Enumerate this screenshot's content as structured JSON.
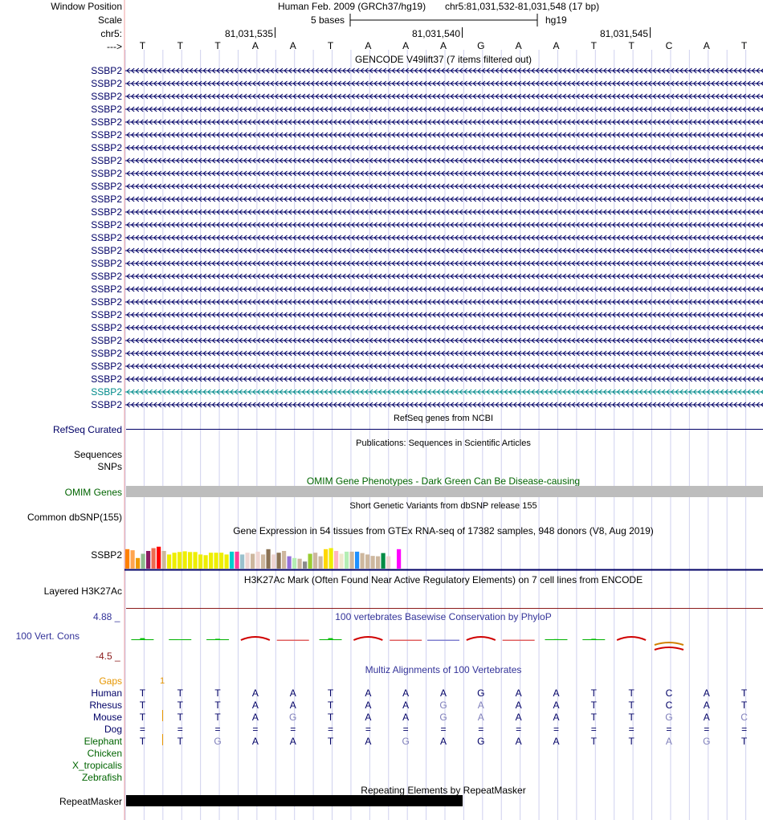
{
  "header": {
    "labels": {
      "window_position": "Window Position",
      "scale": "Scale",
      "chr": "chr5:",
      "arrow": "--->"
    },
    "assembly": "Human Feb. 2009 (GRCh37/hg19)",
    "position": "chr5:81,031,532-81,031,548 (17 bp)",
    "scale_text": "5 bases",
    "scale_db": "hg19",
    "ticks": [
      "81,031,535",
      "81,031,540",
      "81,031,545"
    ]
  },
  "sequence": [
    "T",
    "T",
    "T",
    "A",
    "A",
    "T",
    "A",
    "A",
    "A",
    "G",
    "A",
    "A",
    "T",
    "T",
    "C",
    "A",
    "T"
  ],
  "gencode": {
    "title": "GENCODE V49lift37 (7 items filtered out)",
    "label": "SSBP2",
    "row_count": 27,
    "highlight_row": 25
  },
  "refseq": {
    "title": "RefSeq genes from NCBI",
    "label": "RefSeq Curated"
  },
  "publications": {
    "title": "Publications: Sequences in Scientific Articles",
    "labels": [
      "Sequences",
      "SNPs"
    ]
  },
  "omim": {
    "title": "OMIM Gene Phenotypes - Dark Green Can Be Disease-causing",
    "label": "OMIM Genes"
  },
  "dbsnp": {
    "title": "Short Genetic Variants from dbSNP release 155",
    "label": "Common dbSNP(155)"
  },
  "gtex": {
    "title": "Gene Expression in 54 tissues from GTEx RNA-seq of 17382 samples, 948 donors (V8, Aug 2019)",
    "label": "SSBP2",
    "bars": [
      {
        "v": 0.55,
        "c": "#FF7F00"
      },
      {
        "v": 0.52,
        "c": "#FFA54F"
      },
      {
        "v": 0.3,
        "c": "#EE9A00"
      },
      {
        "v": 0.42,
        "c": "#8FBC8F"
      },
      {
        "v": 0.5,
        "c": "#8B1C62"
      },
      {
        "v": 0.58,
        "c": "#EE6A50"
      },
      {
        "v": 0.62,
        "c": "#FF0000"
      },
      {
        "v": 0.5,
        "c": "#CDB79E"
      },
      {
        "v": 0.4,
        "c": "#EEEE00"
      },
      {
        "v": 0.45,
        "c": "#EEEE00"
      },
      {
        "v": 0.47,
        "c": "#EEEE00"
      },
      {
        "v": 0.49,
        "c": "#EEEE00"
      },
      {
        "v": 0.47,
        "c": "#EEEE00"
      },
      {
        "v": 0.47,
        "c": "#EEEE00"
      },
      {
        "v": 0.4,
        "c": "#EEEE00"
      },
      {
        "v": 0.38,
        "c": "#EEEE00"
      },
      {
        "v": 0.45,
        "c": "#EEEE00"
      },
      {
        "v": 0.45,
        "c": "#EEEE00"
      },
      {
        "v": 0.45,
        "c": "#EEEE00"
      },
      {
        "v": 0.4,
        "c": "#EEEE00"
      },
      {
        "v": 0.48,
        "c": "#00CDCD"
      },
      {
        "v": 0.48,
        "c": "#FF3E96"
      },
      {
        "v": 0.4,
        "c": "#9AC0CD"
      },
      {
        "v": 0.45,
        "c": "#EED5D2"
      },
      {
        "v": 0.42,
        "c": "#CDB79E"
      },
      {
        "v": 0.48,
        "c": "#EED5D2"
      },
      {
        "v": 0.4,
        "c": "#CDB79E"
      },
      {
        "v": 0.55,
        "c": "#8B7355"
      },
      {
        "v": 0.4,
        "c": "#EED5D2"
      },
      {
        "v": 0.45,
        "c": "#8B7355"
      },
      {
        "v": 0.5,
        "c": "#CDB79E"
      },
      {
        "v": 0.35,
        "c": "#9370DB"
      },
      {
        "v": 0.3,
        "c": "#B4EEB4"
      },
      {
        "v": 0.28,
        "c": "#CDB79E"
      },
      {
        "v": 0.2,
        "c": "#8B8B8B"
      },
      {
        "v": 0.42,
        "c": "#9ACD32"
      },
      {
        "v": 0.45,
        "c": "#CDB79E"
      },
      {
        "v": 0.35,
        "c": "#CDB79E"
      },
      {
        "v": 0.55,
        "c": "#FFD700"
      },
      {
        "v": 0.58,
        "c": "#EEEE00"
      },
      {
        "v": 0.5,
        "c": "#FFB6C1"
      },
      {
        "v": 0.42,
        "c": "#EEE8CD"
      },
      {
        "v": 0.48,
        "c": "#B4EEB4"
      },
      {
        "v": 0.48,
        "c": "#CDB79E"
      },
      {
        "v": 0.48,
        "c": "#1E90FF"
      },
      {
        "v": 0.44,
        "c": "#CDB79E"
      },
      {
        "v": 0.4,
        "c": "#CDB79E"
      },
      {
        "v": 0.36,
        "c": "#CDB79E"
      },
      {
        "v": 0.35,
        "c": "#CDB79E"
      },
      {
        "v": 0.44,
        "c": "#008B45"
      },
      {
        "v": 0.35,
        "c": "#EED5D2"
      },
      {
        "v": 0.58,
        "c": "#FFFFFF"
      },
      {
        "v": 0.55,
        "c": "#FF00FF"
      },
      {
        "v": 0.15,
        "c": "#FFFFFF"
      }
    ]
  },
  "h3k27ac": {
    "title": "H3K27Ac Mark (Often Found Near Active Regulatory Elements) on 7 cell lines from ENCODE",
    "label": "Layered H3K27Ac"
  },
  "conservation": {
    "title": "100 vertebrates Basewise Conservation by PhyloP",
    "label": "100 Vert. Cons",
    "max": "4.88 _",
    "min": "-4.5 _",
    "scores": [
      0.6,
      0.2,
      0.4,
      -2.2,
      -0.3,
      0.6,
      -2.2,
      -0.3,
      -1.0,
      -2.2,
      -0.4,
      0.3,
      0.4,
      -2.5,
      0,
      0,
      0
    ]
  },
  "multiz": {
    "title": "Multiz Alignments of 100 Vertebrates",
    "gaps_label": "Gaps",
    "gaps_mark": "1",
    "species": [
      {
        "name": "Human",
        "bases": [
          "T",
          "T",
          "T",
          "A",
          "A",
          "T",
          "A",
          "A",
          "A",
          "G",
          "A",
          "A",
          "T",
          "T",
          "C",
          "A",
          "T"
        ]
      },
      {
        "name": "Rhesus",
        "bases": [
          "T",
          "T",
          "T",
          "A",
          "A",
          "T",
          "A",
          "A",
          "G",
          "A",
          "A",
          "A",
          "T",
          "T",
          "C",
          "A",
          "T"
        ]
      },
      {
        "name": "Mouse",
        "bases": [
          "T",
          "T",
          "T",
          "A",
          "G",
          "T",
          "A",
          "A",
          "G",
          "A",
          "A",
          "A",
          "T",
          "T",
          "G",
          "A",
          "C"
        ]
      },
      {
        "name": "Dog",
        "bases": [
          "=",
          "=",
          "=",
          "=",
          "=",
          "=",
          "=",
          "=",
          "=",
          "=",
          "=",
          "=",
          "=",
          "=",
          "=",
          "=",
          "="
        ]
      },
      {
        "name": "Elephant",
        "bases": [
          "T",
          "T",
          "G",
          "A",
          "A",
          "T",
          "A",
          "G",
          "A",
          "G",
          "A",
          "A",
          "T",
          "T",
          "A",
          "G",
          "T"
        ]
      },
      {
        "name": "Chicken",
        "bases": []
      },
      {
        "name": "X_tropicalis",
        "bases": []
      },
      {
        "name": "Zebrafish",
        "bases": []
      }
    ]
  },
  "repeatmasker": {
    "title": "Repeating Elements by RepeatMasker",
    "label": "RepeatMasker"
  },
  "colors": {
    "navy": "#000066",
    "blue": "#333399",
    "green": "#006400",
    "teal": "#008B8B",
    "orange": "#E69600"
  }
}
